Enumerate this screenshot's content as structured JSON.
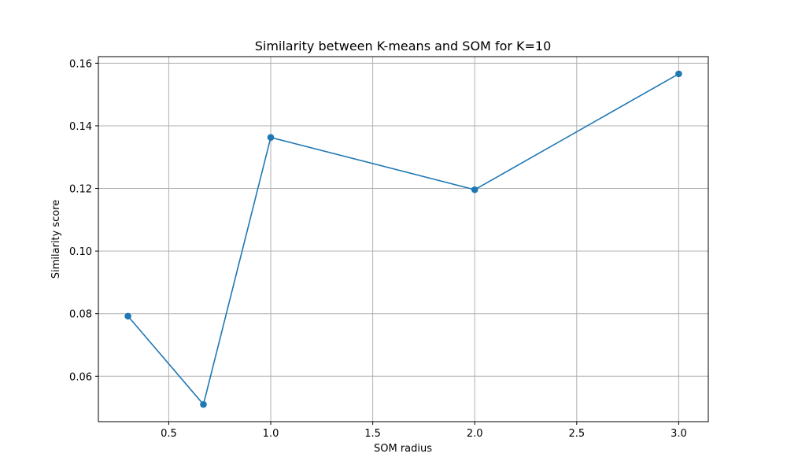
{
  "chart_data": {
    "type": "line",
    "title": "Similarity between K-means and SOM for K=10",
    "xlabel": "SOM radius",
    "ylabel": "Similarity score",
    "x": [
      0.3,
      0.67,
      1.0,
      2.0,
      3.0
    ],
    "series": [
      {
        "values": [
          0.0792,
          0.051,
          0.1363,
          0.1196,
          0.1566
        ]
      }
    ],
    "xlim": [
      0.155,
      3.145
    ],
    "ylim": [
      0.0455,
      0.1621
    ],
    "xticks": [
      0.5,
      1.0,
      1.5,
      2.0,
      2.5,
      3.0
    ],
    "xtick_labels": [
      "0.5",
      "1.0",
      "1.5",
      "2.0",
      "2.5",
      "3.0"
    ],
    "yticks": [
      0.06,
      0.08,
      0.1,
      0.12,
      0.14,
      0.16
    ],
    "ytick_labels": [
      "0.06",
      "0.08",
      "0.10",
      "0.12",
      "0.14",
      "0.16"
    ],
    "grid": true,
    "marker": "circle",
    "line_color": "#1f77b4"
  }
}
